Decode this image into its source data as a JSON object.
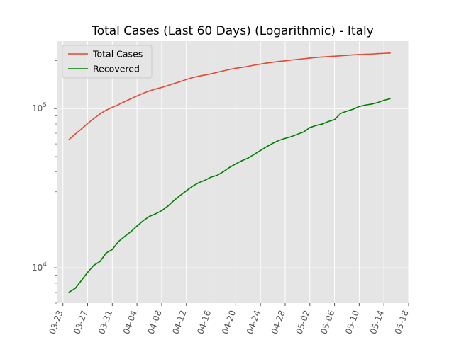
{
  "chart_data": {
    "type": "line",
    "title": "Total Cases (Last 60 Days) (Logarithmic) - Italy",
    "xlabel": "",
    "ylabel": "",
    "y_scale": "log",
    "ylim": [
      6000,
      265000
    ],
    "xlim": [
      "2020-03-22",
      "2020-05-18"
    ],
    "x_ticks": [
      "03-23",
      "03-27",
      "03-31",
      "04-04",
      "04-08",
      "04-12",
      "04-16",
      "04-20",
      "04-24",
      "04-28",
      "05-02",
      "05-06",
      "05-10",
      "05-14",
      "05-18"
    ],
    "x_tick_values": [
      "2020-03-23",
      "2020-03-27",
      "2020-03-31",
      "2020-04-04",
      "2020-04-08",
      "2020-04-12",
      "2020-04-16",
      "2020-04-20",
      "2020-04-24",
      "2020-04-28",
      "2020-05-02",
      "2020-05-06",
      "2020-05-10",
      "2020-05-14",
      "2020-05-18"
    ],
    "y_ticks": [
      {
        "value": 10000,
        "base": "10",
        "exp": "4"
      },
      {
        "value": 100000,
        "base": "10",
        "exp": "5"
      }
    ],
    "grid": true,
    "legend_position": "top-left",
    "series": [
      {
        "name": "Total Cases",
        "color": "#E24A33",
        "x": [
          "2020-03-24",
          "2020-03-25",
          "2020-03-26",
          "2020-03-27",
          "2020-03-28",
          "2020-03-29",
          "2020-03-30",
          "2020-03-31",
          "2020-04-01",
          "2020-04-02",
          "2020-04-03",
          "2020-04-04",
          "2020-04-05",
          "2020-04-06",
          "2020-04-07",
          "2020-04-08",
          "2020-04-09",
          "2020-04-10",
          "2020-04-11",
          "2020-04-12",
          "2020-04-13",
          "2020-04-14",
          "2020-04-15",
          "2020-04-16",
          "2020-04-17",
          "2020-04-18",
          "2020-04-19",
          "2020-04-20",
          "2020-04-21",
          "2020-04-22",
          "2020-04-23",
          "2020-04-24",
          "2020-04-25",
          "2020-04-26",
          "2020-04-27",
          "2020-04-28",
          "2020-04-29",
          "2020-04-30",
          "2020-05-01",
          "2020-05-02",
          "2020-05-03",
          "2020-05-04",
          "2020-05-05",
          "2020-05-06",
          "2020-05-07",
          "2020-05-08",
          "2020-05-09",
          "2020-05-10",
          "2020-05-11",
          "2020-05-12",
          "2020-05-13",
          "2020-05-14",
          "2020-05-15"
        ],
        "values": [
          63927,
          69176,
          74386,
          80539,
          86498,
          92472,
          97689,
          101739,
          105792,
          110574,
          115242,
          119827,
          124632,
          128948,
          132547,
          135586,
          139422,
          143626,
          147577,
          152271,
          156363,
          159516,
          162488,
          165155,
          168941,
          172434,
          175925,
          178972,
          181228,
          183957,
          187327,
          189973,
          192994,
          195351,
          197675,
          199414,
          201505,
          203591,
          205463,
          207428,
          209328,
          210717,
          211938,
          213013,
          214457,
          215858,
          217185,
          218268,
          219070,
          219814,
          221216,
          222104,
          223096
        ]
      },
      {
        "name": "Recovered",
        "color": "#008000",
        "x": [
          "2020-03-24",
          "2020-03-25",
          "2020-03-26",
          "2020-03-27",
          "2020-03-28",
          "2020-03-29",
          "2020-03-30",
          "2020-03-31",
          "2020-04-01",
          "2020-04-02",
          "2020-04-03",
          "2020-04-04",
          "2020-04-05",
          "2020-04-06",
          "2020-04-07",
          "2020-04-08",
          "2020-04-09",
          "2020-04-10",
          "2020-04-11",
          "2020-04-12",
          "2020-04-13",
          "2020-04-14",
          "2020-04-15",
          "2020-04-16",
          "2020-04-17",
          "2020-04-18",
          "2020-04-19",
          "2020-04-20",
          "2020-04-21",
          "2020-04-22",
          "2020-04-23",
          "2020-04-24",
          "2020-04-25",
          "2020-04-26",
          "2020-04-27",
          "2020-04-28",
          "2020-04-29",
          "2020-04-30",
          "2020-05-01",
          "2020-05-02",
          "2020-05-03",
          "2020-05-04",
          "2020-05-05",
          "2020-05-06",
          "2020-05-07",
          "2020-05-08",
          "2020-05-09",
          "2020-05-10",
          "2020-05-11",
          "2020-05-12",
          "2020-05-13",
          "2020-05-14",
          "2020-05-15"
        ],
        "values": [
          7024,
          7432,
          8326,
          9362,
          10361,
          10950,
          12384,
          13030,
          14620,
          15729,
          16847,
          18278,
          19758,
          20996,
          21815,
          22837,
          24392,
          26491,
          28470,
          30455,
          32534,
          34211,
          35435,
          37130,
          38092,
          40164,
          42727,
          44927,
          47055,
          48877,
          51600,
          54543,
          57576,
          60498,
          63120,
          64928,
          66624,
          68941,
          71252,
          75945,
          78249,
          79914,
          82879,
          85231,
          93245,
          96276,
          99023,
          103031,
          105186,
          106587,
          109039,
          112541,
          115288
        ]
      }
    ]
  }
}
